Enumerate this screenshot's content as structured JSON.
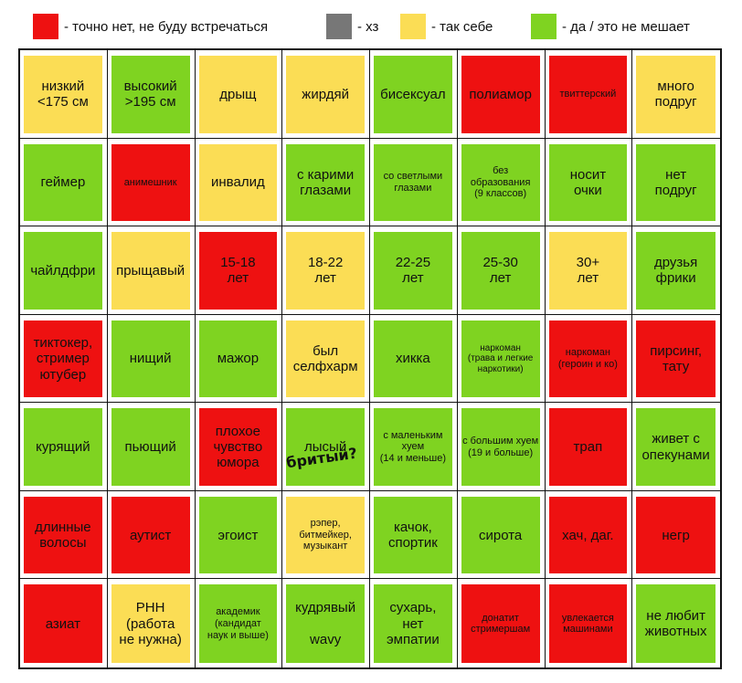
{
  "colors": {
    "red": "#ee1111",
    "gray": "#777777",
    "yellow": "#fbdd55",
    "green": "#7fd321"
  },
  "legend": [
    {
      "color": "red",
      "label": "- точно нет, не буду встречаться"
    },
    {
      "color": "gray",
      "label": "- хз"
    },
    {
      "color": "yellow",
      "label": "- так себе"
    },
    {
      "color": "green",
      "label": "- да / это не мешает"
    }
  ],
  "cells": [
    {
      "label": "низкий\n<175 см",
      "color": "yellow"
    },
    {
      "label": "высокий\n>195 см",
      "color": "green"
    },
    {
      "label": "дрыщ",
      "color": "yellow"
    },
    {
      "label": "жирдяй",
      "color": "yellow"
    },
    {
      "label": "бисексуал",
      "color": "green"
    },
    {
      "label": "полиамор",
      "color": "red"
    },
    {
      "label": "твиттерский",
      "color": "red",
      "size": "sm"
    },
    {
      "label": "много\nподруг",
      "color": "yellow"
    },
    {
      "label": "геймер",
      "color": "green"
    },
    {
      "label": "анимешник",
      "color": "red",
      "size": "sm"
    },
    {
      "label": "инвалид",
      "color": "yellow"
    },
    {
      "label": "с карими\nглазами",
      "color": "green"
    },
    {
      "label": "со светлыми\nглазами",
      "color": "green",
      "size": "sm"
    },
    {
      "label": "без\nобразования\n(9 классов)",
      "color": "green",
      "size": "sm"
    },
    {
      "label": "носит\nочки",
      "color": "green"
    },
    {
      "label": "нет\nподруг",
      "color": "green"
    },
    {
      "label": "чайлдфри",
      "color": "green"
    },
    {
      "label": "прыщавый",
      "color": "yellow"
    },
    {
      "label": "15-18\nлет",
      "color": "red"
    },
    {
      "label": "18-22\nлет",
      "color": "yellow"
    },
    {
      "label": "22-25\nлет",
      "color": "green"
    },
    {
      "label": "25-30\nлет",
      "color": "green"
    },
    {
      "label": "30+\nлет",
      "color": "yellow"
    },
    {
      "label": "друзья\nфрики",
      "color": "green"
    },
    {
      "label": "тиктокер,\nстример\nютубер",
      "color": "red"
    },
    {
      "label": "нищий",
      "color": "green"
    },
    {
      "label": "мажор",
      "color": "green"
    },
    {
      "label": "был\nселфхарм",
      "color": "yellow"
    },
    {
      "label": "хикка",
      "color": "green"
    },
    {
      "label": "наркоман\n(трава и легкие\nнаркотики)",
      "color": "green",
      "size": "xs"
    },
    {
      "label": "наркоман\n(героин и ко)",
      "color": "red",
      "size": "sm"
    },
    {
      "label": "пирсинг,\nтату",
      "color": "red"
    },
    {
      "label": "курящий",
      "color": "green"
    },
    {
      "label": "пьющий",
      "color": "green"
    },
    {
      "label": "плохое\nчувство\nюмора",
      "color": "red"
    },
    {
      "label": "лысый",
      "color": "green"
    },
    {
      "label": "с маленьким\nхуем\n(14 и меньше)",
      "color": "green",
      "size": "sm"
    },
    {
      "label": "с большим хуем\n(19 и больше)",
      "color": "green",
      "size": "sm"
    },
    {
      "label": "трап",
      "color": "red"
    },
    {
      "label": "живет с\nопекунами",
      "color": "green"
    },
    {
      "label": "длинные\nволосы",
      "color": "red"
    },
    {
      "label": "аутист",
      "color": "red"
    },
    {
      "label": "эгоист",
      "color": "green"
    },
    {
      "label": "рэпер,\nбитмейкер,\nмузыкант",
      "color": "yellow",
      "size": "sm"
    },
    {
      "label": "качок,\nспортик",
      "color": "green"
    },
    {
      "label": "сирота",
      "color": "green"
    },
    {
      "label": "хач, даг.",
      "color": "red"
    },
    {
      "label": "негр",
      "color": "red"
    },
    {
      "label": "азиат",
      "color": "red"
    },
    {
      "label": "РНН\n(работа\nне нужна)",
      "color": "yellow"
    },
    {
      "label": "академик\n(кандидат\nнаук и выше)",
      "color": "green",
      "size": "sm"
    },
    {
      "label": "кудрявый\n\nwavy",
      "color": "green"
    },
    {
      "label": "сухарь,\nнет\nэмпатии",
      "color": "green"
    },
    {
      "label": "донатит\nстримершам",
      "color": "red",
      "size": "sm"
    },
    {
      "label": "увлекается\nмашинами",
      "color": "red",
      "size": "sm"
    },
    {
      "label": "не любит\nживотных",
      "color": "green"
    }
  ],
  "annotation": "бритый?"
}
